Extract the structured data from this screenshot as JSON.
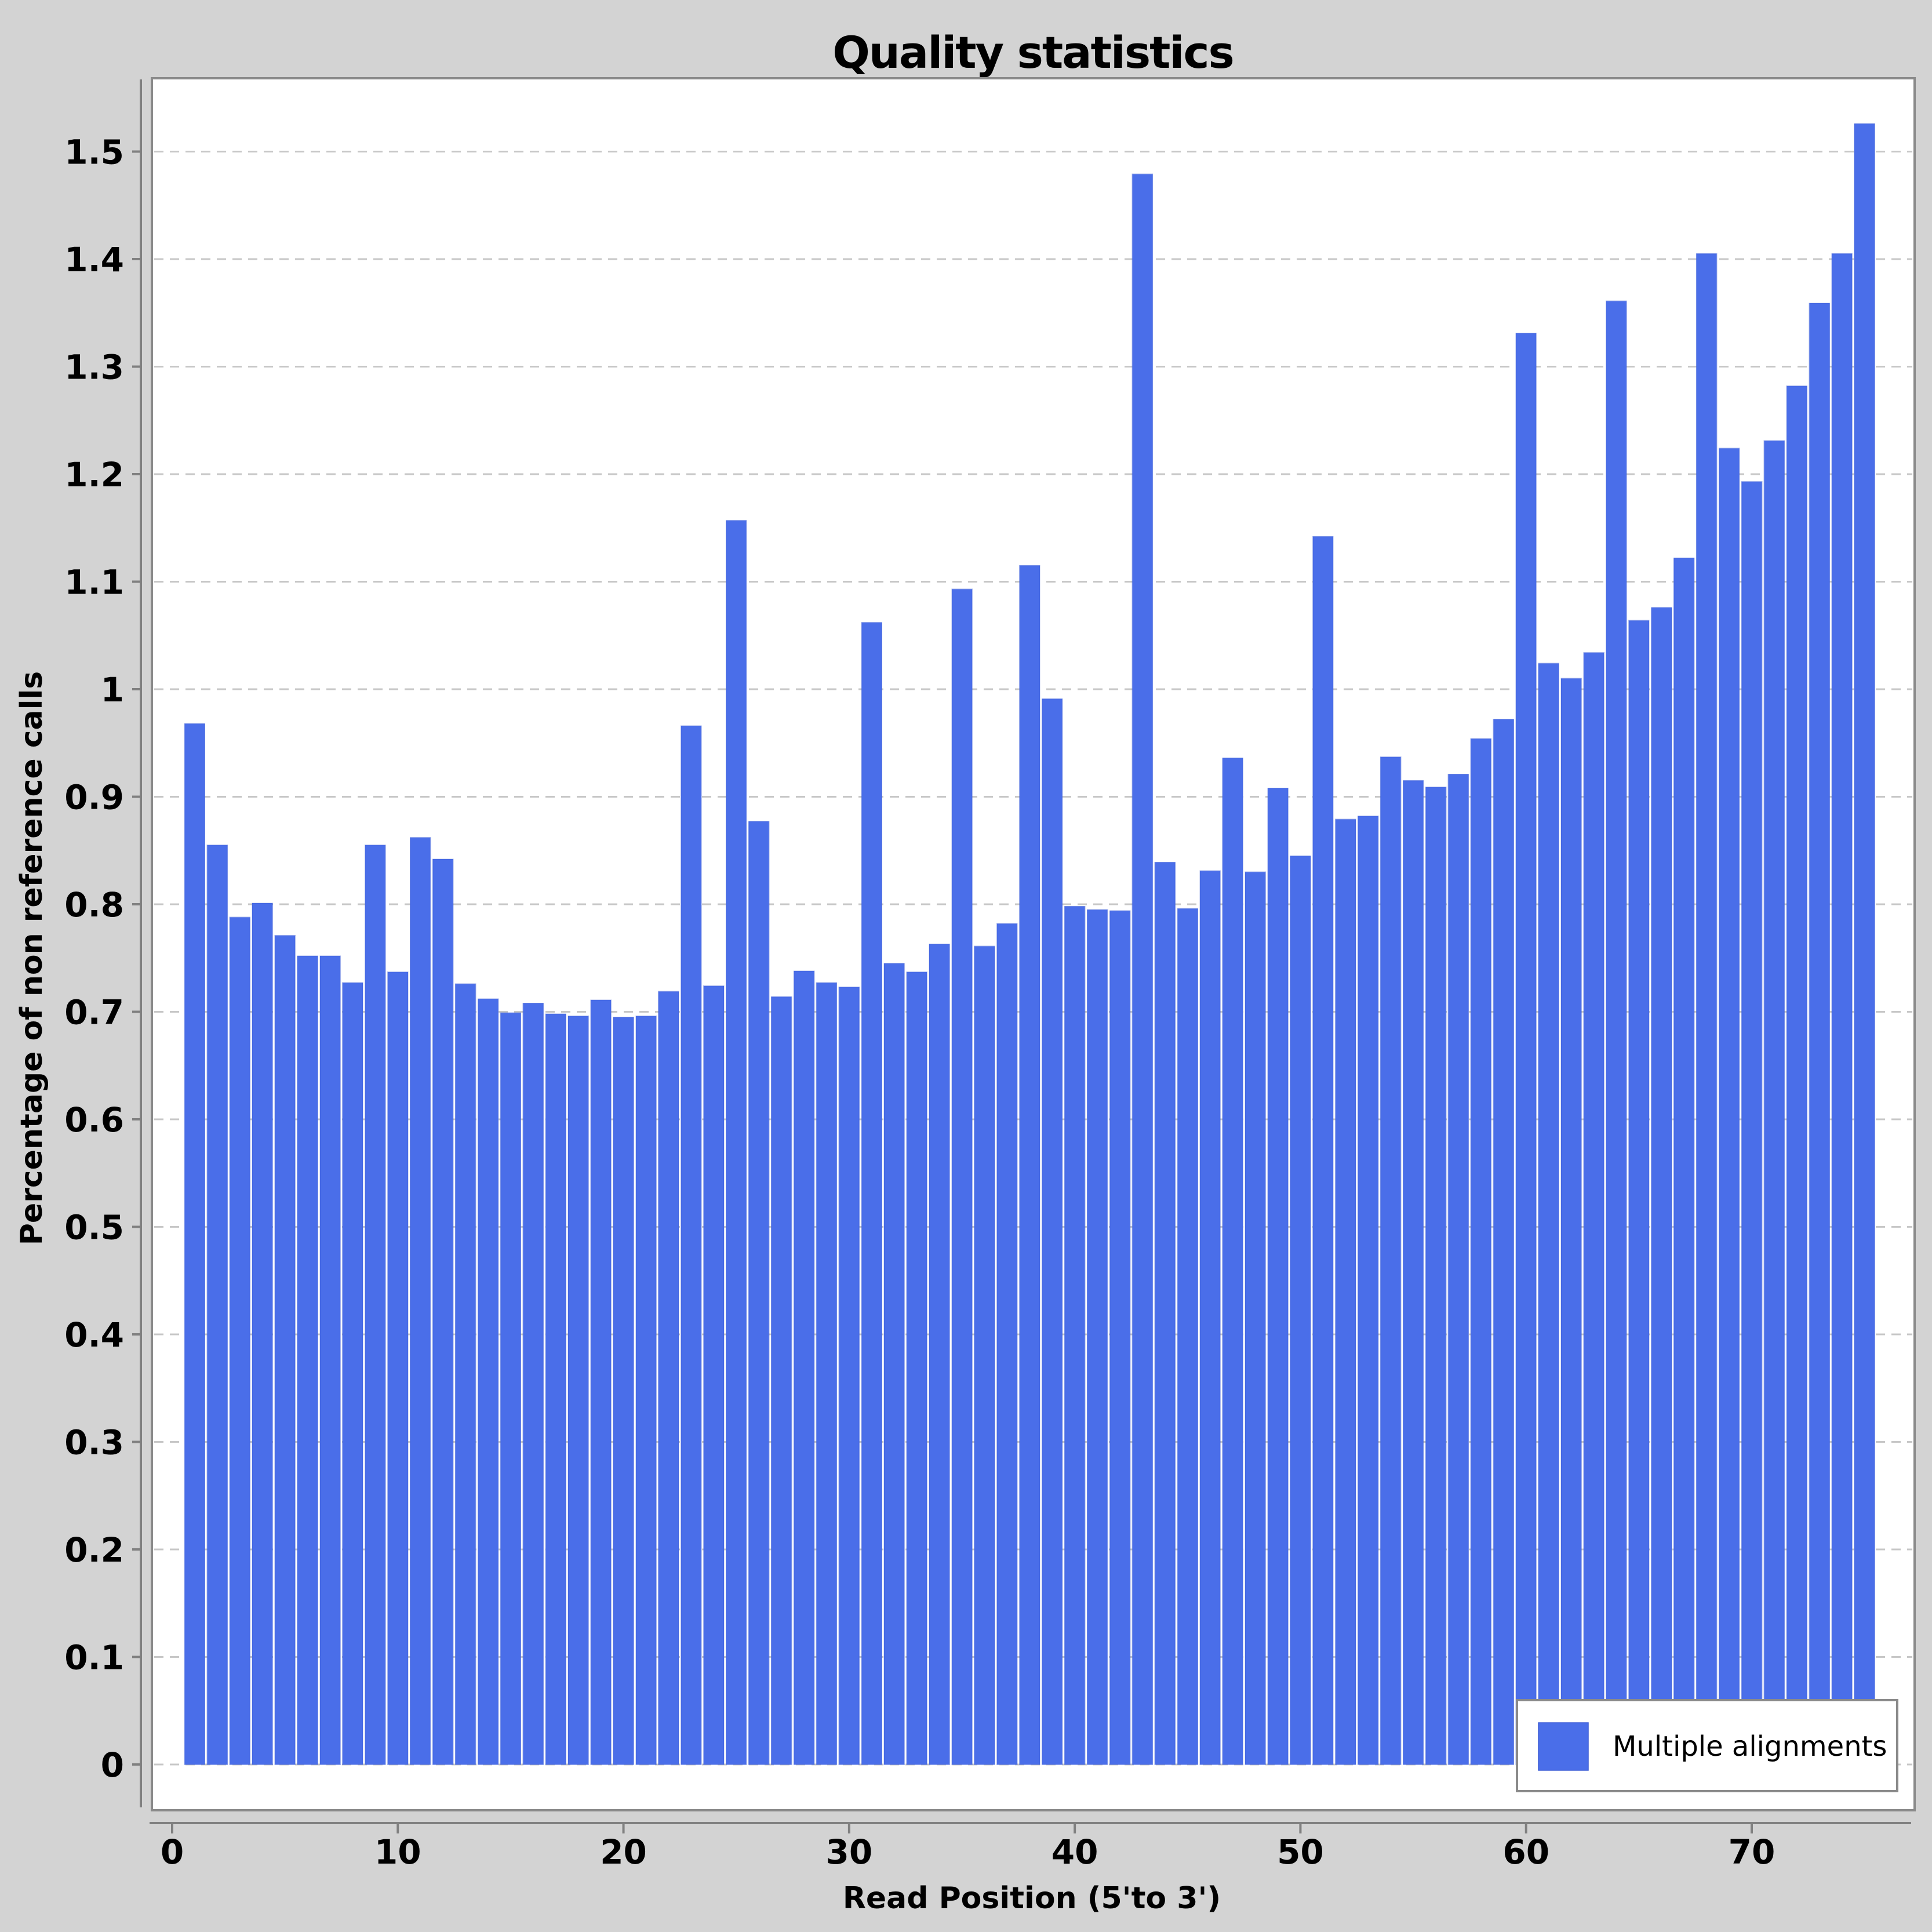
{
  "title": "Quality statistics",
  "legend": {
    "label": "Multiple alignments"
  },
  "colors": {
    "bar": "#4a6ee9",
    "bar_edge": "#3f5fd6",
    "background": "#d3d3d3",
    "plot_background": "#ffffff",
    "grid": "#c7c7c7",
    "frame": "#8a8a8a",
    "spine": "#808080",
    "text": "#000000"
  },
  "chart_data": {
    "type": "bar",
    "title": "Quality statistics",
    "xlabel": "Read Position (5'to 3')",
    "ylabel": "Percentage of non reference calls",
    "series_name": "Multiple alignments",
    "grid": "horizontal dashed",
    "legend_position": "bottom-right",
    "xlim": [
      0,
      76
    ],
    "ylim": [
      0,
      1.55
    ],
    "x_tick_labels": [
      "0",
      "10",
      "20",
      "30",
      "40",
      "50",
      "60",
      "70"
    ],
    "y_tick_labels": [
      "0",
      "0.1",
      "0.2",
      "0.3",
      "0.4",
      "0.5",
      "0.6",
      "0.7",
      "0.8",
      "0.9",
      "1",
      "1.1",
      "1.2",
      "1.3",
      "1.4",
      "1.5"
    ],
    "x": [
      1,
      2,
      3,
      4,
      5,
      6,
      7,
      8,
      9,
      10,
      11,
      12,
      13,
      14,
      15,
      16,
      17,
      18,
      19,
      20,
      21,
      22,
      23,
      24,
      25,
      26,
      27,
      28,
      29,
      30,
      31,
      32,
      33,
      34,
      35,
      36,
      37,
      38,
      39,
      40,
      41,
      42,
      43,
      44,
      45,
      46,
      47,
      48,
      49,
      50,
      51,
      52,
      53,
      54,
      55,
      56,
      57,
      58,
      59,
      60,
      61,
      62,
      63,
      64,
      65,
      66,
      67,
      68,
      69,
      70,
      71,
      72,
      73,
      74,
      75
    ],
    "values": [
      0.968,
      0.855,
      0.788,
      0.801,
      0.771,
      0.752,
      0.752,
      0.727,
      0.855,
      0.737,
      0.862,
      0.842,
      0.726,
      0.712,
      0.699,
      0.708,
      0.698,
      0.696,
      0.711,
      0.695,
      0.696,
      0.719,
      0.966,
      0.724,
      1.157,
      0.877,
      0.714,
      0.738,
      0.727,
      0.723,
      1.062,
      0.745,
      0.737,
      0.763,
      1.093,
      0.761,
      0.782,
      1.115,
      0.991,
      0.798,
      0.795,
      0.794,
      1.479,
      0.839,
      0.796,
      0.831,
      0.936,
      0.83,
      0.908,
      0.845,
      1.142,
      0.879,
      0.882,
      0.937,
      0.915,
      0.909,
      0.921,
      0.954,
      0.972,
      1.331,
      1.024,
      1.01,
      1.034,
      1.361,
      1.064,
      1.076,
      1.122,
      1.405,
      1.224,
      1.193,
      1.231,
      1.282,
      1.359,
      1.405,
      1.526
    ]
  }
}
